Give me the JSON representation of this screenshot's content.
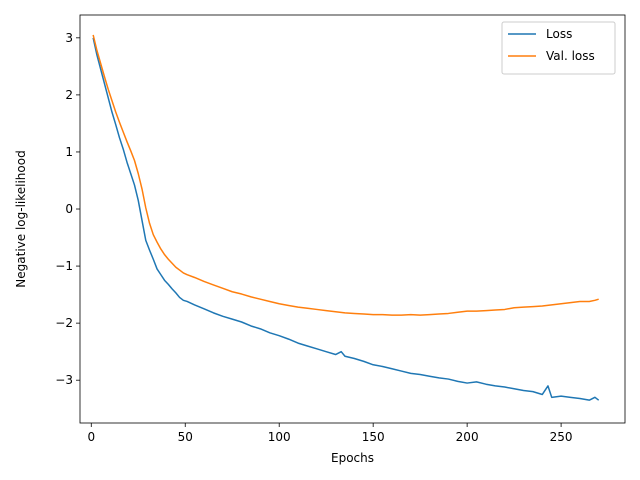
{
  "chart_data": {
    "type": "line",
    "xlabel": "Epochs",
    "ylabel": "Negative log-likelihood",
    "xlim": [
      -6,
      284
    ],
    "ylim": [
      -3.75,
      3.4
    ],
    "xticks": [
      0,
      50,
      100,
      150,
      200,
      250
    ],
    "yticks": [
      3,
      2,
      1,
      0,
      -1,
      -2,
      -3
    ],
    "grid": false,
    "legend": {
      "placement": "top-right"
    },
    "series": [
      {
        "name": "Loss",
        "color": "#1f77b4",
        "x": [
          1,
          3,
          5,
          7,
          9,
          11,
          13,
          15,
          17,
          19,
          21,
          23,
          25,
          27,
          29,
          31,
          33,
          35,
          37,
          39,
          41,
          43,
          45,
          47,
          49,
          51,
          55,
          60,
          65,
          70,
          75,
          80,
          85,
          90,
          95,
          100,
          105,
          110,
          115,
          120,
          125,
          130,
          133,
          135,
          140,
          145,
          150,
          155,
          160,
          165,
          170,
          175,
          180,
          185,
          190,
          195,
          200,
          205,
          210,
          215,
          220,
          225,
          230,
          235,
          240,
          243,
          245,
          250,
          255,
          260,
          265,
          268,
          270
        ],
        "y": [
          3.0,
          2.7,
          2.45,
          2.2,
          1.95,
          1.7,
          1.48,
          1.25,
          1.05,
          0.82,
          0.62,
          0.42,
          0.15,
          -0.2,
          -0.55,
          -0.72,
          -0.88,
          -1.05,
          -1.15,
          -1.25,
          -1.32,
          -1.4,
          -1.47,
          -1.55,
          -1.6,
          -1.62,
          -1.68,
          -1.75,
          -1.82,
          -1.88,
          -1.93,
          -1.98,
          -2.05,
          -2.1,
          -2.17,
          -2.22,
          -2.28,
          -2.35,
          -2.4,
          -2.45,
          -2.5,
          -2.55,
          -2.5,
          -2.58,
          -2.62,
          -2.67,
          -2.73,
          -2.76,
          -2.8,
          -2.84,
          -2.88,
          -2.9,
          -2.93,
          -2.96,
          -2.98,
          -3.02,
          -3.05,
          -3.03,
          -3.07,
          -3.1,
          -3.12,
          -3.15,
          -3.18,
          -3.2,
          -3.25,
          -3.1,
          -3.3,
          -3.28,
          -3.3,
          -3.32,
          -3.35,
          -3.3,
          -3.35
        ]
      },
      {
        "name": "Val. loss",
        "color": "#ff7f0e",
        "x": [
          1,
          3,
          5,
          7,
          9,
          11,
          13,
          15,
          17,
          19,
          21,
          23,
          25,
          27,
          29,
          31,
          33,
          35,
          37,
          39,
          41,
          43,
          45,
          47,
          49,
          51,
          55,
          60,
          65,
          70,
          75,
          80,
          85,
          90,
          95,
          100,
          105,
          110,
          115,
          120,
          125,
          130,
          135,
          140,
          145,
          150,
          155,
          160,
          165,
          170,
          175,
          180,
          185,
          190,
          195,
          200,
          205,
          210,
          215,
          220,
          225,
          230,
          235,
          240,
          245,
          250,
          255,
          260,
          265,
          268,
          270
        ],
        "y": [
          3.05,
          2.78,
          2.55,
          2.32,
          2.1,
          1.9,
          1.7,
          1.52,
          1.35,
          1.18,
          1.02,
          0.85,
          0.62,
          0.35,
          0.02,
          -0.25,
          -0.45,
          -0.58,
          -0.7,
          -0.8,
          -0.88,
          -0.95,
          -1.02,
          -1.07,
          -1.12,
          -1.15,
          -1.2,
          -1.27,
          -1.33,
          -1.39,
          -1.45,
          -1.49,
          -1.54,
          -1.58,
          -1.62,
          -1.66,
          -1.69,
          -1.72,
          -1.74,
          -1.76,
          -1.78,
          -1.8,
          -1.82,
          -1.83,
          -1.84,
          -1.85,
          -1.85,
          -1.86,
          -1.86,
          -1.85,
          -1.86,
          -1.85,
          -1.84,
          -1.83,
          -1.81,
          -1.79,
          -1.79,
          -1.78,
          -1.77,
          -1.76,
          -1.73,
          -1.72,
          -1.71,
          -1.7,
          -1.68,
          -1.66,
          -1.64,
          -1.62,
          -1.62,
          -1.6,
          -1.58
        ]
      }
    ]
  }
}
